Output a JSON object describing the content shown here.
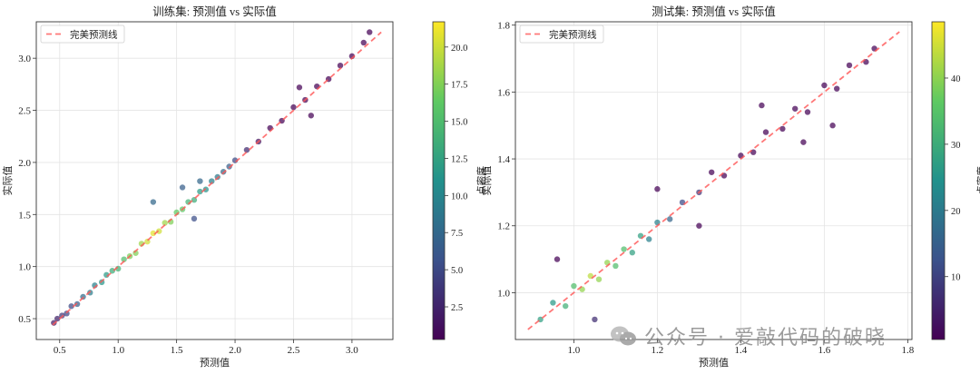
{
  "figure": {
    "watermark_text": "公众号 · 爱敲代码的破晓"
  },
  "chart_data": [
    {
      "type": "scatter",
      "title": "训练集: 预测值 vs 实际值",
      "xlabel": "预测值",
      "ylabel": "实际值",
      "xlim": [
        0.3,
        3.35
      ],
      "ylim": [
        0.3,
        3.35
      ],
      "xticks": [
        0.5,
        1.0,
        1.5,
        2.0,
        2.5,
        3.0
      ],
      "yticks": [
        0.5,
        1.0,
        1.5,
        2.0,
        2.5,
        3.0
      ],
      "xtick_labels": [
        "0.5",
        "1.0",
        "1.5",
        "2.0",
        "2.5",
        "3.0"
      ],
      "ytick_labels": [
        "0.5",
        "1.0",
        "1.5",
        "2.0",
        "2.5",
        "3.0"
      ],
      "grid": true,
      "legend": {
        "position": "top-left",
        "entries": [
          "完美预测线"
        ]
      },
      "reference_line": {
        "x": [
          0.44,
          3.25
        ],
        "y": [
          0.44,
          3.25
        ],
        "color": "#ff5555",
        "style": "dashed"
      },
      "colorbar": {
        "label": "点密度",
        "min": 0.3,
        "max": 21.7,
        "ticks": [
          2.5,
          5.0,
          7.5,
          10.0,
          12.5,
          15.0,
          17.5,
          20.0
        ],
        "tick_labels": [
          "2.5",
          "5.0",
          "7.5",
          "10.0",
          "12.5",
          "15.0",
          "17.5",
          "20.0"
        ]
      },
      "colormap": [
        "#440154",
        "#3b528b",
        "#21918c",
        "#5ec962",
        "#fde725"
      ],
      "density_peak_x": 1.3,
      "series": [
        {
          "values": [
            {
              "x": 0.45,
              "y": 0.46
            },
            {
              "x": 0.48,
              "y": 0.5
            },
            {
              "x": 0.52,
              "y": 0.53
            },
            {
              "x": 0.56,
              "y": 0.55
            },
            {
              "x": 0.6,
              "y": 0.62
            },
            {
              "x": 0.65,
              "y": 0.64
            },
            {
              "x": 0.7,
              "y": 0.71
            },
            {
              "x": 0.76,
              "y": 0.75
            },
            {
              "x": 0.8,
              "y": 0.82
            },
            {
              "x": 0.86,
              "y": 0.85
            },
            {
              "x": 0.9,
              "y": 0.92
            },
            {
              "x": 0.95,
              "y": 0.96
            },
            {
              "x": 1.0,
              "y": 0.98
            },
            {
              "x": 1.05,
              "y": 1.07
            },
            {
              "x": 1.1,
              "y": 1.1
            },
            {
              "x": 1.15,
              "y": 1.13
            },
            {
              "x": 1.2,
              "y": 1.22
            },
            {
              "x": 1.25,
              "y": 1.24
            },
            {
              "x": 1.3,
              "y": 1.32
            },
            {
              "x": 1.35,
              "y": 1.34
            },
            {
              "x": 1.4,
              "y": 1.42
            },
            {
              "x": 1.45,
              "y": 1.43
            },
            {
              "x": 1.5,
              "y": 1.52
            },
            {
              "x": 1.55,
              "y": 1.55
            },
            {
              "x": 1.6,
              "y": 1.62
            },
            {
              "x": 1.65,
              "y": 1.64
            },
            {
              "x": 1.7,
              "y": 1.72
            },
            {
              "x": 1.75,
              "y": 1.74
            },
            {
              "x": 1.8,
              "y": 1.82
            },
            {
              "x": 1.85,
              "y": 1.86
            },
            {
              "x": 1.9,
              "y": 1.91
            },
            {
              "x": 1.95,
              "y": 1.96
            },
            {
              "x": 2.0,
              "y": 2.02
            },
            {
              "x": 2.1,
              "y": 2.12
            },
            {
              "x": 2.2,
              "y": 2.2
            },
            {
              "x": 2.3,
              "y": 2.33
            },
            {
              "x": 2.4,
              "y": 2.4
            },
            {
              "x": 2.5,
              "y": 2.53
            },
            {
              "x": 2.6,
              "y": 2.6
            },
            {
              "x": 2.7,
              "y": 2.73
            },
            {
              "x": 2.8,
              "y": 2.8
            },
            {
              "x": 2.9,
              "y": 2.93
            },
            {
              "x": 3.0,
              "y": 3.02
            },
            {
              "x": 3.1,
              "y": 3.15
            },
            {
              "x": 3.15,
              "y": 3.25
            },
            {
              "x": 1.55,
              "y": 1.76
            },
            {
              "x": 1.3,
              "y": 1.62
            },
            {
              "x": 1.65,
              "y": 1.46
            },
            {
              "x": 1.7,
              "y": 1.82
            },
            {
              "x": 2.55,
              "y": 2.72
            },
            {
              "x": 2.65,
              "y": 2.45
            }
          ]
        }
      ]
    },
    {
      "type": "scatter",
      "title": "测试集: 预测值 vs 实际值",
      "xlabel": "预测值",
      "ylabel": "实际值",
      "xlim": [
        0.86,
        1.81
      ],
      "ylim": [
        0.86,
        1.81
      ],
      "xticks": [
        1.0,
        1.2,
        1.4,
        1.6,
        1.8
      ],
      "yticks": [
        1.0,
        1.2,
        1.4,
        1.6,
        1.8
      ],
      "xtick_labels": [
        "1.0",
        "1.2",
        "1.4",
        "1.6",
        "1.8"
      ],
      "ytick_labels": [
        "1.0",
        "1.2",
        "1.4",
        "1.6",
        "1.8"
      ],
      "grid": true,
      "legend": {
        "position": "top-left",
        "entries": [
          "完美预测线"
        ]
      },
      "reference_line": {
        "x": [
          0.89,
          1.78
        ],
        "y": [
          0.89,
          1.78
        ],
        "color": "#ff5555",
        "style": "dashed"
      },
      "colorbar": {
        "label": "点密度",
        "min": 0.5,
        "max": 48.5,
        "ticks": [
          10,
          20,
          30,
          40
        ],
        "tick_labels": [
          "10",
          "20",
          "30",
          "40"
        ]
      },
      "colormap": [
        "#440154",
        "#3b528b",
        "#21918c",
        "#5ec962",
        "#fde725"
      ],
      "density_peak_x": 1.05,
      "series": [
        {
          "values": [
            {
              "x": 0.92,
              "y": 0.92
            },
            {
              "x": 0.95,
              "y": 0.97
            },
            {
              "x": 0.98,
              "y": 0.96
            },
            {
              "x": 1.0,
              "y": 1.02
            },
            {
              "x": 1.02,
              "y": 1.01
            },
            {
              "x": 1.04,
              "y": 1.05
            },
            {
              "x": 1.06,
              "y": 1.04
            },
            {
              "x": 1.08,
              "y": 1.09
            },
            {
              "x": 1.1,
              "y": 1.08
            },
            {
              "x": 1.12,
              "y": 1.13
            },
            {
              "x": 1.14,
              "y": 1.12
            },
            {
              "x": 1.16,
              "y": 1.17
            },
            {
              "x": 1.18,
              "y": 1.16
            },
            {
              "x": 1.2,
              "y": 1.21
            },
            {
              "x": 1.23,
              "y": 1.22
            },
            {
              "x": 1.26,
              "y": 1.27
            },
            {
              "x": 1.3,
              "y": 1.3
            },
            {
              "x": 1.33,
              "y": 1.36
            },
            {
              "x": 1.36,
              "y": 1.35
            },
            {
              "x": 1.4,
              "y": 1.41
            },
            {
              "x": 1.43,
              "y": 1.42
            },
            {
              "x": 1.46,
              "y": 1.48
            },
            {
              "x": 1.5,
              "y": 1.49
            },
            {
              "x": 1.53,
              "y": 1.55
            },
            {
              "x": 1.56,
              "y": 1.54
            },
            {
              "x": 1.6,
              "y": 1.62
            },
            {
              "x": 1.63,
              "y": 1.61
            },
            {
              "x": 1.66,
              "y": 1.68
            },
            {
              "x": 1.7,
              "y": 1.69
            },
            {
              "x": 1.72,
              "y": 1.73
            },
            {
              "x": 0.96,
              "y": 1.1
            },
            {
              "x": 1.05,
              "y": 0.92
            },
            {
              "x": 1.2,
              "y": 1.31
            },
            {
              "x": 1.45,
              "y": 1.56
            },
            {
              "x": 1.62,
              "y": 1.5
            },
            {
              "x": 1.3,
              "y": 1.2
            },
            {
              "x": 1.55,
              "y": 1.45
            }
          ]
        }
      ]
    }
  ]
}
